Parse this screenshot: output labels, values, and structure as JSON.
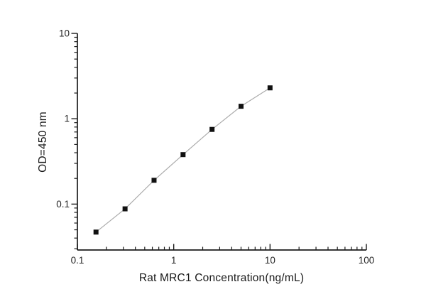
{
  "figure": {
    "background_color": "#ffffff",
    "kind": "elisa-standard-curve"
  },
  "chart_data": {
    "type": "scatter",
    "subtype": "scatter-with-line",
    "title": "",
    "xlabel": "Rat MRC1 Concentration(ng/mL)",
    "ylabel": "OD=450 nm",
    "x_scale": "log",
    "y_scale": "log",
    "xlim": [
      0.1,
      100
    ],
    "ylim": [
      0.029,
      10
    ],
    "grid": false,
    "legend_position": "none",
    "series": [
      {
        "name": "standard-curve",
        "x": [
          0.156,
          0.3125,
          0.625,
          1.25,
          2.5,
          5,
          10
        ],
        "y": [
          0.047,
          0.088,
          0.19,
          0.38,
          0.75,
          1.4,
          2.3
        ]
      }
    ],
    "x_ticks": [
      {
        "value": 0.1,
        "label": "0.1"
      },
      {
        "value": 1,
        "label": "1"
      },
      {
        "value": 10,
        "label": "10"
      },
      {
        "value": 100,
        "label": "100"
      }
    ],
    "y_ticks": [
      {
        "value": 0.1,
        "label": "0.1"
      },
      {
        "value": 1,
        "label": "1"
      },
      {
        "value": 10,
        "label": "10"
      }
    ],
    "marker": {
      "shape": "square",
      "color": "#111111",
      "size": 7
    },
    "line": {
      "color": "#ababab",
      "width": 1.2
    },
    "axis_color": "#1c1c1c",
    "text_color": "#262626"
  }
}
